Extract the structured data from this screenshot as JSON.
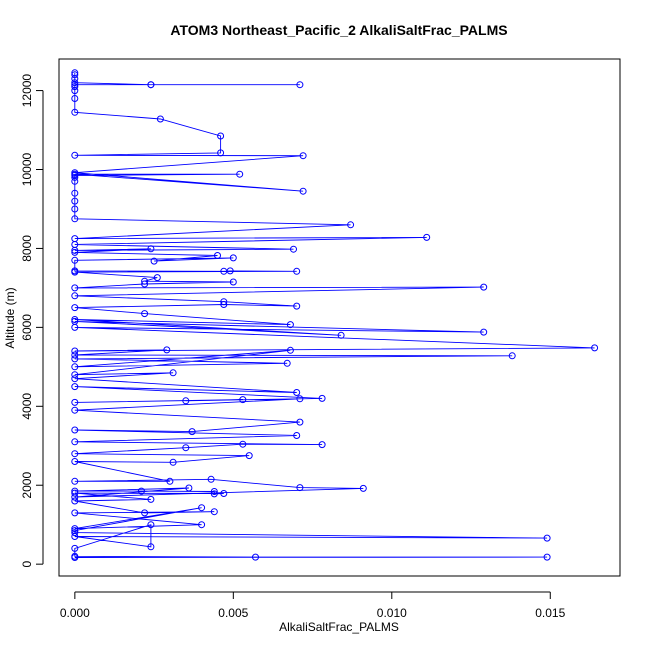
{
  "chart_data": {
    "type": "line",
    "title": "ATOM3 Northeast_Pacific_2 AlkaliSaltFrac_PALMS",
    "xlabel": "AlkaliSaltFrac_PALMS",
    "ylabel": "Altitude (m)",
    "xlim": [
      -0.0005,
      0.0172
    ],
    "ylim": [
      -300,
      12800
    ],
    "x_ticks": [
      0.0,
      0.005,
      0.01,
      0.015
    ],
    "x_tick_labels": [
      "0.000",
      "0.005",
      "0.010",
      "0.015"
    ],
    "y_ticks": [
      0,
      2000,
      4000,
      6000,
      8000,
      10000,
      12000
    ],
    "y_tick_labels": [
      "0",
      "2000",
      "4000",
      "6000",
      "8000",
      "10000",
      "12000"
    ],
    "grid": false,
    "legend": "none",
    "series": [
      {
        "color": "#0000ff",
        "marker": "open-circle",
        "points": [
          [
            0,
            12450
          ],
          [
            0,
            12400
          ],
          [
            0,
            12300
          ],
          [
            0,
            12200
          ],
          [
            0.0024,
            12150
          ],
          [
            0.0024,
            12150
          ],
          [
            0.0071,
            12150
          ],
          [
            0,
            12150
          ],
          [
            0,
            12100
          ],
          [
            0,
            12000
          ],
          [
            0,
            11800
          ],
          [
            0,
            11450
          ],
          [
            0.0027,
            11280
          ],
          [
            0.0046,
            10850
          ],
          [
            0.0046,
            10420
          ],
          [
            0,
            10360
          ],
          [
            0.0072,
            10350
          ],
          [
            0,
            9920
          ],
          [
            0.0072,
            9450
          ],
          [
            0,
            9880
          ],
          [
            0.0052,
            9880
          ],
          [
            0,
            9850
          ],
          [
            0,
            9800
          ],
          [
            0,
            9700
          ],
          [
            0,
            9400
          ],
          [
            0,
            9200
          ],
          [
            0,
            9000
          ],
          [
            0,
            8750
          ],
          [
            0.0087,
            8600
          ],
          [
            0,
            8250
          ],
          [
            0.0111,
            8280
          ],
          [
            0,
            8100
          ],
          [
            0.0069,
            7980
          ],
          [
            0,
            7950
          ],
          [
            0.0024,
            7990
          ],
          [
            0,
            7900
          ],
          [
            0.0045,
            7820
          ],
          [
            0.0025,
            7680
          ],
          [
            0.005,
            7760
          ],
          [
            0,
            7700
          ],
          [
            0,
            7430
          ],
          [
            0.0047,
            7420
          ],
          [
            0.0049,
            7430
          ],
          [
            0.007,
            7420
          ],
          [
            0,
            7400
          ],
          [
            0.0026,
            7260
          ],
          [
            0.0022,
            7170
          ],
          [
            0.005,
            7150
          ],
          [
            0.0022,
            7100
          ],
          [
            0,
            7000
          ],
          [
            0.0129,
            7020
          ],
          [
            0,
            6800
          ],
          [
            0.0047,
            6650
          ],
          [
            0.007,
            6540
          ],
          [
            0.0047,
            6580
          ],
          [
            0,
            6500
          ],
          [
            0.0022,
            6350
          ],
          [
            0.0068,
            6070
          ],
          [
            0,
            6200
          ],
          [
            0.0084,
            5800
          ],
          [
            0,
            6150
          ],
          [
            0.0129,
            5880
          ],
          [
            0,
            6000
          ],
          [
            0.0164,
            5480
          ],
          [
            0,
            5400
          ],
          [
            0.0029,
            5430
          ],
          [
            0,
            5300
          ],
          [
            0.0138,
            5280
          ],
          [
            0,
            5200
          ],
          [
            0.0067,
            5090
          ],
          [
            0,
            5000
          ],
          [
            0.0068,
            5420
          ],
          [
            0,
            4800
          ],
          [
            0.0031,
            4850
          ],
          [
            0,
            4700
          ],
          [
            0.007,
            4350
          ],
          [
            0,
            4500
          ],
          [
            0.0078,
            4200
          ],
          [
            0.0035,
            4140
          ],
          [
            0.0053,
            4170
          ],
          [
            0,
            4100
          ],
          [
            0.0071,
            4190
          ],
          [
            0,
            3900
          ],
          [
            0.0071,
            3600
          ],
          [
            0.0037,
            3360
          ],
          [
            0,
            3400
          ],
          [
            0.007,
            3260
          ],
          [
            0,
            3100
          ],
          [
            0.0078,
            3030
          ],
          [
            0.0053,
            3040
          ],
          [
            0.0035,
            2950
          ],
          [
            0,
            2800
          ],
          [
            0.0055,
            2750
          ],
          [
            0.0031,
            2580
          ],
          [
            0,
            2600
          ],
          [
            0.003,
            2100
          ],
          [
            0,
            2100
          ],
          [
            0.0043,
            2150
          ],
          [
            0.0071,
            1940
          ],
          [
            0.0091,
            1920
          ],
          [
            0,
            1700
          ],
          [
            0.0036,
            1930
          ],
          [
            0,
            1850
          ],
          [
            0.0021,
            1850
          ],
          [
            0.0044,
            1840
          ],
          [
            0.0044,
            1780
          ],
          [
            0.0047,
            1790
          ],
          [
            0,
            1800
          ],
          [
            0.0024,
            1640
          ],
          [
            0,
            1600
          ],
          [
            0.0022,
            1300
          ],
          [
            0.0044,
            1330
          ],
          [
            0,
            1300
          ],
          [
            0.004,
            1000
          ],
          [
            0,
            900
          ],
          [
            0.004,
            1430
          ],
          [
            0,
            850
          ],
          [
            0,
            800
          ],
          [
            0.0149,
            660
          ],
          [
            0,
            700
          ],
          [
            0.0024,
            440
          ],
          [
            0.0024,
            1000
          ],
          [
            0,
            400
          ],
          [
            0,
            200
          ],
          [
            0.0057,
            180
          ],
          [
            0.0149,
            180
          ],
          [
            0,
            170
          ]
        ]
      }
    ]
  }
}
